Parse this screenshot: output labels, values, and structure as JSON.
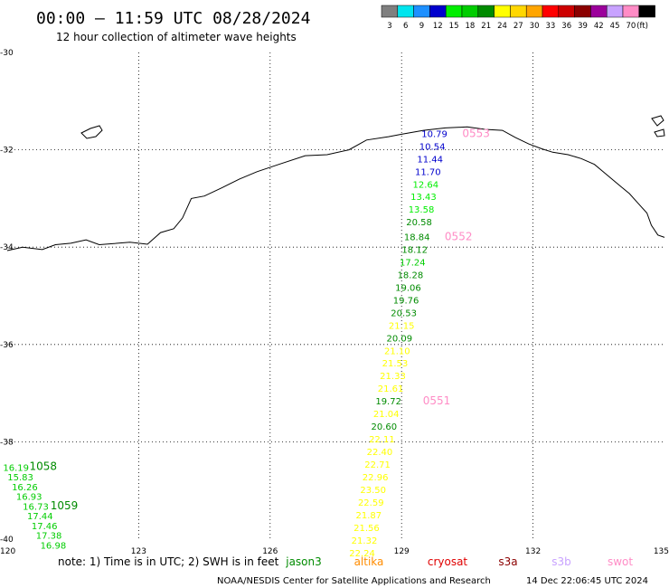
{
  "header": {
    "title": "00:00 – 11:59 UTC 08/28/2024",
    "subtitle": "12 hour collection of altimeter wave heights"
  },
  "legend": {
    "unit": "(ft)",
    "bins": [
      {
        "label": "3",
        "color": "#7f7f7f"
      },
      {
        "label": "6",
        "color": "#00e5ee"
      },
      {
        "label": "9",
        "color": "#1e90ff"
      },
      {
        "label": "12",
        "color": "#0000cd"
      },
      {
        "label": "15",
        "color": "#00ee00"
      },
      {
        "label": "18",
        "color": "#00cd00"
      },
      {
        "label": "21",
        "color": "#008b00"
      },
      {
        "label": "24",
        "color": "#ffff00"
      },
      {
        "label": "27",
        "color": "#ffd700"
      },
      {
        "label": "30",
        "color": "#ffa500"
      },
      {
        "label": "33",
        "color": "#ff0000"
      },
      {
        "label": "36",
        "color": "#cd0000"
      },
      {
        "label": "39",
        "color": "#8b0000"
      },
      {
        "label": "42",
        "color": "#9b009b"
      },
      {
        "label": "45",
        "color": "#c8a2ff"
      },
      {
        "label": "70",
        "color": "#ff8cc6"
      },
      {
        "label": "",
        "color": "#000000"
      }
    ]
  },
  "footer": {
    "note": "note:  1) Time is in UTC; 2) SWH is in feet",
    "satellites": [
      {
        "name": "jason3",
        "color": "#008b00"
      },
      {
        "name": "altika",
        "color": "#ff8c00"
      },
      {
        "name": "cryosat",
        "color": "#e00000"
      },
      {
        "name": "s3a",
        "color": "#8b0000"
      },
      {
        "name": "s3b",
        "color": "#c8a2ff"
      },
      {
        "name": "swot",
        "color": "#ff8cc6"
      }
    ],
    "credit": "NOAA/NESDIS Center for Satellite Applications and Research",
    "timestamp": "14 Dec 22:06:45 UTC 2024"
  },
  "chart_data": {
    "type": "scatter",
    "title": "00:00 – 11:59 UTC 08/28/2024",
    "subtitle": "12 hour collection of altimeter wave heights",
    "xlim": [
      120,
      135
    ],
    "ylim": [
      -40,
      -30
    ],
    "xticks": [
      "120",
      "123",
      "126",
      "129",
      "132",
      "135"
    ],
    "yticks": [
      "-30",
      "-32",
      "-34",
      "-36",
      "-38",
      "-40"
    ],
    "grid": true,
    "coastline": [
      [
        120.0,
        -34.07
      ],
      [
        120.35,
        -34.0
      ],
      [
        120.8,
        -34.05
      ],
      [
        121.1,
        -33.95
      ],
      [
        121.45,
        -33.92
      ],
      [
        121.8,
        -33.85
      ],
      [
        122.1,
        -33.95
      ],
      [
        122.4,
        -33.93
      ],
      [
        122.8,
        -33.9
      ],
      [
        123.2,
        -33.94
      ],
      [
        123.5,
        -33.7
      ],
      [
        123.8,
        -33.62
      ],
      [
        124.0,
        -33.4
      ],
      [
        124.2,
        -33.0
      ],
      [
        124.5,
        -32.95
      ],
      [
        124.9,
        -32.78
      ],
      [
        125.3,
        -32.6
      ],
      [
        125.7,
        -32.45
      ],
      [
        126.2,
        -32.3
      ],
      [
        126.8,
        -32.12
      ],
      [
        127.3,
        -32.1
      ],
      [
        127.8,
        -32.0
      ],
      [
        128.2,
        -31.8
      ],
      [
        128.7,
        -31.73
      ],
      [
        129.0,
        -31.68
      ],
      [
        129.5,
        -31.6
      ],
      [
        130.0,
        -31.55
      ],
      [
        130.5,
        -31.53
      ],
      [
        130.9,
        -31.58
      ],
      [
        131.3,
        -31.6
      ],
      [
        131.6,
        -31.75
      ],
      [
        131.9,
        -31.88
      ],
      [
        132.2,
        -31.98
      ],
      [
        132.45,
        -32.05
      ],
      [
        132.8,
        -32.1
      ],
      [
        133.1,
        -32.18
      ],
      [
        133.4,
        -32.3
      ],
      [
        133.6,
        -32.45
      ],
      [
        133.8,
        -32.6
      ],
      [
        134.0,
        -32.75
      ],
      [
        134.2,
        -32.9
      ],
      [
        134.4,
        -33.1
      ],
      [
        134.6,
        -33.3
      ],
      [
        134.7,
        -33.55
      ],
      [
        134.85,
        -33.75
      ],
      [
        135.0,
        -33.8
      ]
    ],
    "passes": [
      {
        "label": "0553",
        "color": "#ff8cc6",
        "label_lon": 130.7,
        "label_lat": -31.66,
        "points": [
          {
            "lon": 129.75,
            "lat": -31.66,
            "swh": 10.79
          },
          {
            "lon": 129.7,
            "lat": -31.92,
            "swh": 10.54
          },
          {
            "lon": 129.65,
            "lat": -32.18,
            "swh": 11.44
          },
          {
            "lon": 129.6,
            "lat": -32.44,
            "swh": 11.7
          },
          {
            "lon": 129.55,
            "lat": -32.7,
            "swh": 12.64
          },
          {
            "lon": 129.5,
            "lat": -32.96,
            "swh": 13.43
          },
          {
            "lon": 129.45,
            "lat": -33.22,
            "swh": 13.58
          },
          {
            "lon": 129.4,
            "lat": -33.48,
            "swh": 20.58
          }
        ]
      },
      {
        "label": "0552",
        "color": "#ff8cc6",
        "label_lon": 130.3,
        "label_lat": -33.78,
        "points": [
          {
            "lon": 129.35,
            "lat": -33.78,
            "swh": 18.84
          },
          {
            "lon": 129.3,
            "lat": -34.04,
            "swh": 18.12
          },
          {
            "lon": 129.25,
            "lat": -34.3,
            "swh": 17.24
          },
          {
            "lon": 129.2,
            "lat": -34.56,
            "swh": 18.28
          },
          {
            "lon": 129.15,
            "lat": -34.82,
            "swh": 19.06
          },
          {
            "lon": 129.1,
            "lat": -35.08,
            "swh": 19.76
          },
          {
            "lon": 129.05,
            "lat": -35.34,
            "swh": 20.53
          },
          {
            "lon": 129.0,
            "lat": -35.6,
            "swh": 21.15
          },
          {
            "lon": 128.95,
            "lat": -35.86,
            "swh": 20.09
          },
          {
            "lon": 128.9,
            "lat": -36.12,
            "swh": 21.1
          },
          {
            "lon": 128.85,
            "lat": -36.38,
            "swh": 21.53
          },
          {
            "lon": 128.8,
            "lat": -36.64,
            "swh": 21.33
          },
          {
            "lon": 128.75,
            "lat": -36.9,
            "swh": 21.61
          }
        ]
      },
      {
        "label": "0551",
        "color": "#ff8cc6",
        "label_lon": 129.8,
        "label_lat": -37.16,
        "points": [
          {
            "lon": 128.7,
            "lat": -37.16,
            "swh": 19.72
          },
          {
            "lon": 128.65,
            "lat": -37.42,
            "swh": 21.04
          },
          {
            "lon": 128.6,
            "lat": -37.68,
            "swh": 20.6
          },
          {
            "lon": 128.55,
            "lat": -37.94,
            "swh": 22.11
          },
          {
            "lon": 128.5,
            "lat": -38.2,
            "swh": 22.4
          },
          {
            "lon": 128.45,
            "lat": -38.46,
            "swh": 22.71
          },
          {
            "lon": 128.4,
            "lat": -38.72,
            "swh": 22.96
          },
          {
            "lon": 128.35,
            "lat": -38.98,
            "swh": 23.5
          },
          {
            "lon": 128.3,
            "lat": -39.24,
            "swh": 22.59
          },
          {
            "lon": 128.25,
            "lat": -39.5,
            "swh": 21.87
          },
          {
            "lon": 128.2,
            "lat": -39.76,
            "swh": 21.56
          },
          {
            "lon": 128.15,
            "lat": -40.02,
            "swh": 21.32
          },
          {
            "lon": 128.1,
            "lat": -40.28,
            "swh": 22.24
          }
        ]
      },
      {
        "label": "1058",
        "color": "#008b00",
        "label_lon": 120.82,
        "label_lat": -38.5,
        "points": [
          {
            "lon": 120.2,
            "lat": -38.52,
            "swh": 16.19
          },
          {
            "lon": 120.3,
            "lat": -38.72,
            "swh": 15.83
          },
          {
            "lon": 120.4,
            "lat": -38.92,
            "swh": 16.26
          },
          {
            "lon": 120.5,
            "lat": -39.12,
            "swh": 16.93
          }
        ]
      },
      {
        "label": "1059",
        "color": "#008b00",
        "label_lon": 121.3,
        "label_lat": -39.31,
        "points": [
          {
            "lon": 120.65,
            "lat": -39.32,
            "swh": 16.73
          },
          {
            "lon": 120.75,
            "lat": -39.52,
            "swh": 17.44
          },
          {
            "lon": 120.85,
            "lat": -39.72,
            "swh": 17.46
          },
          {
            "lon": 120.95,
            "lat": -39.92,
            "swh": 17.38
          },
          {
            "lon": 121.05,
            "lat": -40.12,
            "swh": 16.98
          }
        ]
      }
    ]
  }
}
